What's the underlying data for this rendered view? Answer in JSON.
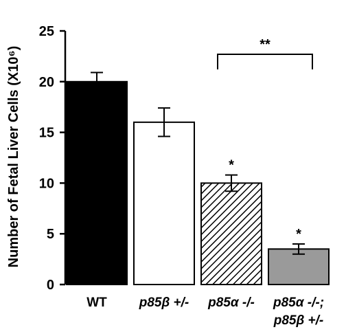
{
  "chart_data": {
    "type": "bar",
    "ylabel": "Number of Fetal Liver Cells (X10⁶)",
    "ylim": [
      0,
      25
    ],
    "yticks": [
      "0",
      "5",
      "10",
      "15",
      "20",
      "25"
    ],
    "categories": [
      {
        "line1": "WT",
        "line2": ""
      },
      {
        "line1": "p85β +/-",
        "line2": ""
      },
      {
        "line1": "p85α -/-",
        "line2": ""
      },
      {
        "line1": "p85α -/-;",
        "line2": "p85β +/-"
      }
    ],
    "values": [
      20,
      16,
      10,
      3.5
    ],
    "errors": [
      0.9,
      1.4,
      0.8,
      0.5
    ],
    "fills": [
      "black",
      "white",
      "hatched",
      "gray"
    ],
    "bar_colors": {
      "black": "#000000",
      "white": "#ffffff",
      "gray": "#9a9a9a",
      "hatch": "#000000"
    },
    "significance": [
      "",
      "",
      "*",
      "*"
    ],
    "bracket": {
      "from": 2,
      "to": 3,
      "y": 22.7,
      "label": "**"
    },
    "grid": false,
    "legend": "none"
  }
}
